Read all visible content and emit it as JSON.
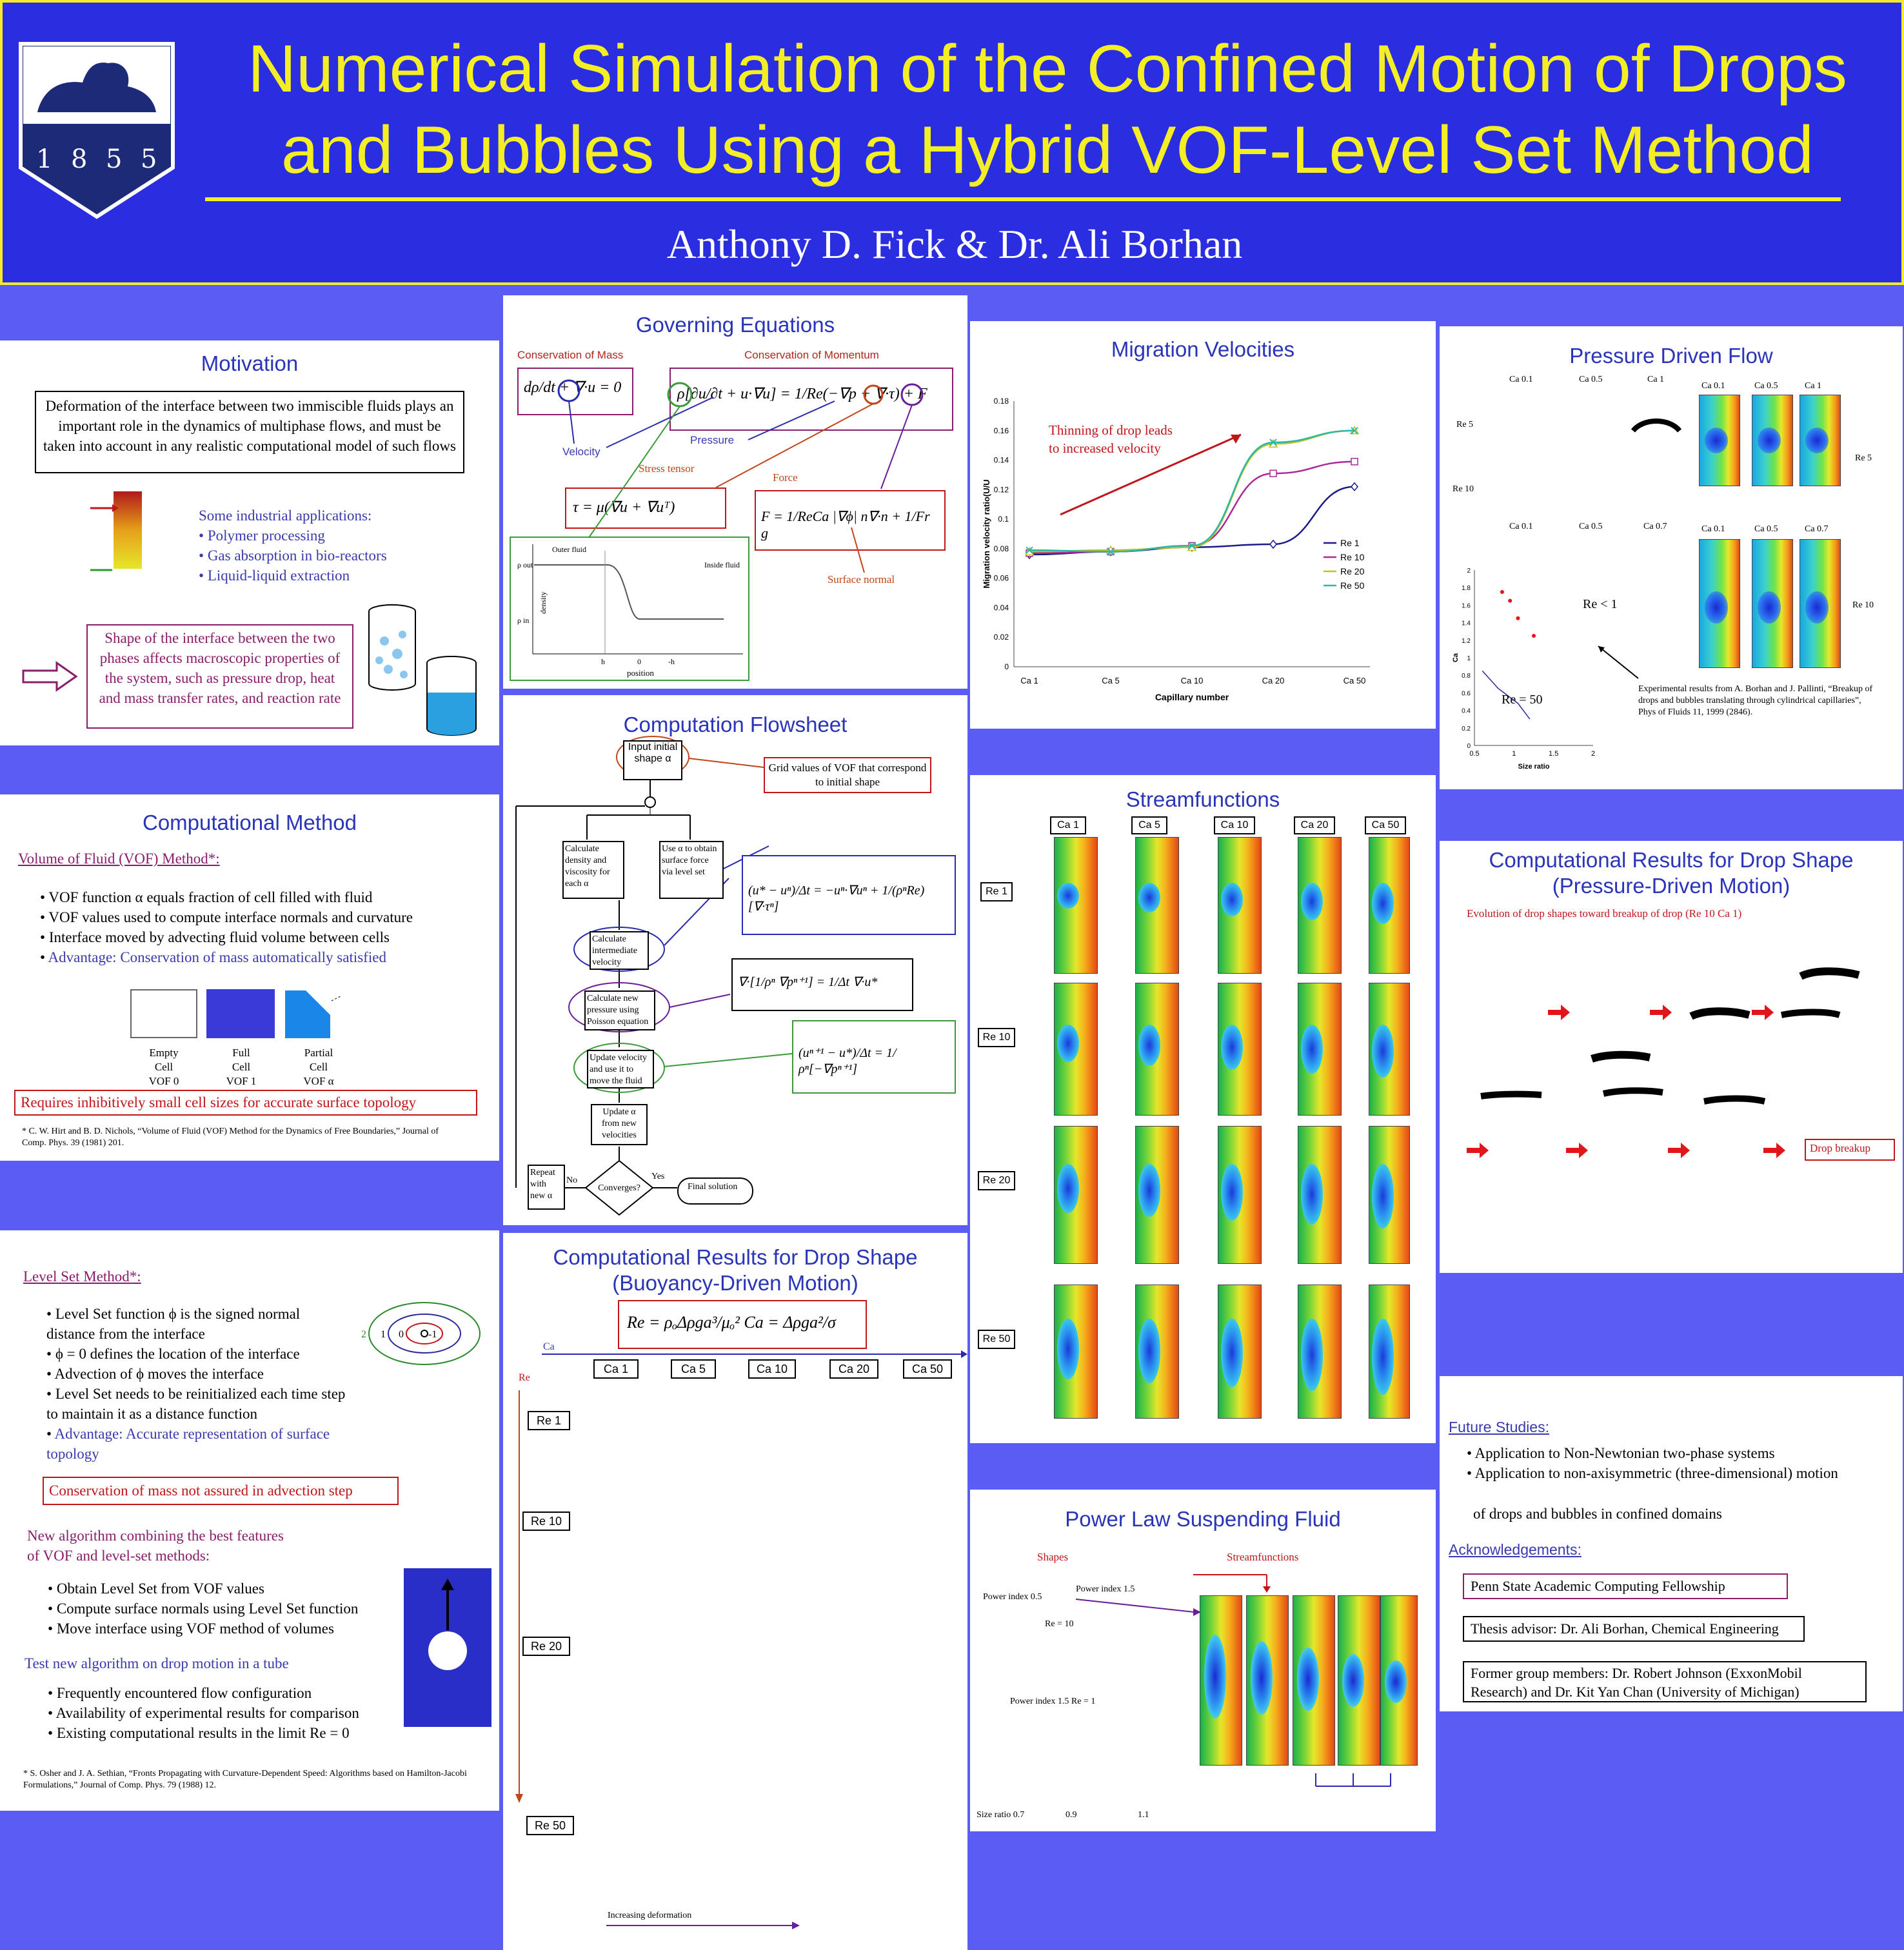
{
  "header": {
    "title_line1": "Numerical Simulation of the Confined Motion of Drops",
    "title_line2": "and Bubbles Using a Hybrid VOF-Level Set Method",
    "authors": "Anthony D. Fick  &  Dr. Ali Borhan",
    "logo_year": [
      "1",
      "8",
      "5",
      "5"
    ]
  },
  "motivation": {
    "title": "Motivation",
    "intro": "Deformation of the interface between two immiscible fluids plays an important role in the dynamics of multiphase flows, and must be taken into account in any realistic computational model of such flows",
    "apps_heading": "Some industrial applications:",
    "apps": [
      "Polymer processing",
      "Gas absorption in bio-reactors",
      "Liquid-liquid extraction"
    ],
    "shape_note": "Shape of the interface between the two phases affects macroscopic properties of the system, such as pressure drop, heat and mass transfer rates, and reaction rate"
  },
  "method": {
    "title": "Computational Method",
    "vof_heading": "Volume of Fluid (VOF) Method*:",
    "vof_bullets": [
      "VOF function α equals fraction of cell filled with fluid",
      "VOF values used to compute interface normals and curvature",
      "Interface moved by advecting fluid volume between cells"
    ],
    "vof_advantage": "Advantage: Conservation of mass automatically satisfied",
    "cells": [
      {
        "l1": "Empty",
        "l2": "Cell",
        "l3": "VOF 0"
      },
      {
        "l1": "Full",
        "l2": "Cell",
        "l3": "VOF 1"
      },
      {
        "l1": "Partial",
        "l2": "Cell",
        "l3": "VOF α"
      }
    ],
    "vof_drawback": "Requires inhibitively small cell sizes for accurate surface topology",
    "vof_ref": "* C. W. Hirt and B. D. Nichols, “Volume of Fluid (VOF) Method for the Dynamics of Free Boundaries,” Journal of Comp. Phys. 39 (1981) 201.",
    "ls_heading": "Level Set Method*:",
    "ls_bullets": [
      "Level Set function ϕ is the signed normal distance from the interface",
      "ϕ = 0  defines the location of the interface",
      "Advection of ϕ moves the interface",
      "Level Set needs to be reinitialized each time step to maintain it as a distance function"
    ],
    "ls_advantage": "Advantage: Accurate representation of surface topology",
    "ls_drawback": "Conservation of mass not assured in advection step",
    "ls_contour_labels": [
      "2",
      "1",
      "0",
      "-1"
    ],
    "new_heading": "New algorithm combining the best features of VOF and level-set methods:",
    "new_bullets": [
      "Obtain Level Set from VOF values",
      "Compute surface normals using Level Set function",
      "Move interface using VOF method of volumes"
    ],
    "test_heading": "Test new algorithm on drop motion in a tube",
    "test_bullets": [
      "Frequently encountered flow configuration",
      "Availability of experimental results for comparison",
      "Existing computational results in the limit Re = 0"
    ],
    "ls_ref": "* S. Osher and J. A. Sethian, “Fronts Propagating with Curvature-Dependent Speed: Algorithms based on Hamilton-Jacobi Formulations,” Journal of Comp. Phys. 79 (1988) 12."
  },
  "governing": {
    "title": "Governing Equations",
    "mass_label": "Conservation of Mass",
    "momentum_label": "Conservation of Momentum",
    "velocity": "Velocity",
    "pressure": "Pressure",
    "stress_tensor": "Stress tensor",
    "force": "Force",
    "surface_normal": "Surface normal",
    "plot_outer": "Outer fluid",
    "plot_inside": "Inside fluid",
    "plot_rho_out": "ρ out",
    "plot_rho_in": "ρ in",
    "plot_ylabel": "density",
    "plot_xlabel": "position",
    "plot_ticks": [
      "h",
      "0",
      "-h"
    ]
  },
  "flowsheet": {
    "title": "Computation Flowsheet",
    "steps": {
      "input": "Input initial shape α",
      "grid_note": "Grid values of VOF that correspond to initial shape",
      "calc_props": "Calculate density and viscosity for each α",
      "use_alpha": "Use α to obtain surface force via level set",
      "intermediate": "Calculate intermediate velocity",
      "pressure": "Calculate new pressure using Poisson equation",
      "update": "Update velocity and use it to move the fluid",
      "update_alpha": "Update α from new velocities",
      "converges": "Converges?",
      "repeat": "Repeat with new α",
      "no": "No",
      "yes": "Yes",
      "final": "Final solution"
    }
  },
  "buoyancy": {
    "title_line1": "Computational Results for Drop Shape",
    "title_line2": "(Buoyancy-Driven Motion)",
    "ca_axis": "Ca",
    "re_axis": "Re",
    "ca_labels": [
      "Ca 1",
      "Ca 5",
      "Ca 10",
      "Ca 20",
      "Ca 50"
    ],
    "re_labels": [
      "Re 1",
      "Re 10",
      "Re 20",
      "Re 50"
    ],
    "increasing": "Increasing deformation"
  },
  "migration": {
    "title": "Migration Velocities",
    "annotation": "Thinning of drop leads to increased velocity",
    "chart_data": {
      "type": "line",
      "categories": [
        "Ca 1",
        "Ca 5",
        "Ca 10",
        "Ca 20",
        "Ca 50"
      ],
      "xlabel": "Capillary number",
      "ylabel": "Migration velocity ratio(U/U",
      "ylim": [
        0,
        0.18
      ],
      "yticks": [
        "0",
        "0.02",
        "0.04",
        "0.06",
        "0.08",
        "0.1",
        "0.12",
        "0.14",
        "0.16",
        "0.18"
      ],
      "series": [
        {
          "name": "Re 1",
          "color": "#1a1a8a",
          "values": [
            0.076,
            0.078,
            0.081,
            0.083,
            0.122
          ]
        },
        {
          "name": "Re 10",
          "color": "#aa2a9a",
          "values": [
            0.077,
            0.078,
            0.082,
            0.131,
            0.139
          ]
        },
        {
          "name": "Re 20",
          "color": "#c8c01a",
          "values": [
            0.078,
            0.079,
            0.081,
            0.151,
            0.16
          ]
        },
        {
          "name": "Re 50",
          "color": "#2ab8a8",
          "values": [
            0.079,
            0.078,
            0.082,
            0.152,
            0.16
          ]
        }
      ]
    }
  },
  "streamfunctions": {
    "title": "Streamfunctions",
    "ca_labels": [
      "Ca 1",
      "Ca 5",
      "Ca 10",
      "Ca 20",
      "Ca 50"
    ],
    "re_labels": [
      "Re 1",
      "Re 10",
      "Re 20",
      "Re 50"
    ]
  },
  "powerlaw": {
    "title": "Power Law Suspending Fluid",
    "shapes": "Shapes",
    "streamfunctions": "Streamfunctions",
    "pi15": "Power index 1.5",
    "pi05": "Power index 0.5",
    "re10": "Re = 10",
    "pi15re1": "Power index 1.5 Re = 1",
    "size_ratio": "Size ratio 0.7",
    "r09": "0.9",
    "r11": "1.1"
  },
  "pressure": {
    "title": "Pressure Driven Flow",
    "ca_top_left": [
      "Ca 0.1",
      "Ca 0.5",
      "Ca 1"
    ],
    "ca_top_right": [
      "Ca 0.1",
      "Ca 0.5",
      "Ca 1"
    ],
    "ca_mid_left": [
      "Ca 0.1",
      "Ca 0.5",
      "Ca 0.7"
    ],
    "ca_mid_right": [
      "Ca 0.1",
      "Ca 0.5",
      "Ca 0.7"
    ],
    "re5": "Re 5",
    "re10": "Re 10",
    "rel1": "Re < 1",
    "re50": "Re = 50",
    "xlabel": "Size ratio",
    "ylabel": "Ca",
    "exp_note": "Experimental results from A. Borhan and J. Pallinti, “Breakup of drops and bubbles translating through cylindrical capillaries”, Phys of Fluids 11, 1999 (2846).",
    "chart_data": {
      "type": "scatter",
      "xlabel": "Size ratio",
      "ylabel": "Ca",
      "xlim": [
        0.5,
        2
      ],
      "ylim": [
        0,
        2
      ],
      "xticks": [
        "0.5",
        "1",
        "1.5",
        "2"
      ],
      "yticks": [
        "0",
        "0.2",
        "0.4",
        "0.6",
        "0.8",
        "1",
        "1.2",
        "1.4",
        "1.6",
        "1.8",
        "2"
      ],
      "series": [
        {
          "name": "Re < 1",
          "x": [
            0.85,
            0.95,
            1.05,
            1.25
          ],
          "y": [
            1.75,
            1.65,
            1.45,
            1.25
          ]
        },
        {
          "name": "Re = 50",
          "x": [
            0.6,
            0.8,
            1.05,
            1.2
          ],
          "y": [
            0.85,
            0.65,
            0.48,
            0.3
          ]
        }
      ]
    }
  },
  "drop_shape": {
    "title_line1": "Computational Results for Drop Shape",
    "title_line2": "(Pressure-Driven Motion)",
    "subtitle": "Evolution of drop shapes toward breakup of drop (Re 10 Ca 1)",
    "breakup": "Drop breakup"
  },
  "future": {
    "heading": "Future Studies:",
    "bullets": [
      "Application to Non-Newtonian two-phase systems",
      "Application to non-axisymmetric (three-dimensional) motion"
    ],
    "continuation": "of drops and bubbles in confined domains",
    "ack_heading": "Acknowledgements:",
    "ack1": "Penn State Academic Computing Fellowship",
    "ack2": "Thesis advisor: Dr. Ali Borhan, Chemical Engineering",
    "ack3": "Former group members: Dr. Robert Johnson (ExxonMobil Research) and Dr. Kit Yan Chan (University of Michigan)"
  }
}
